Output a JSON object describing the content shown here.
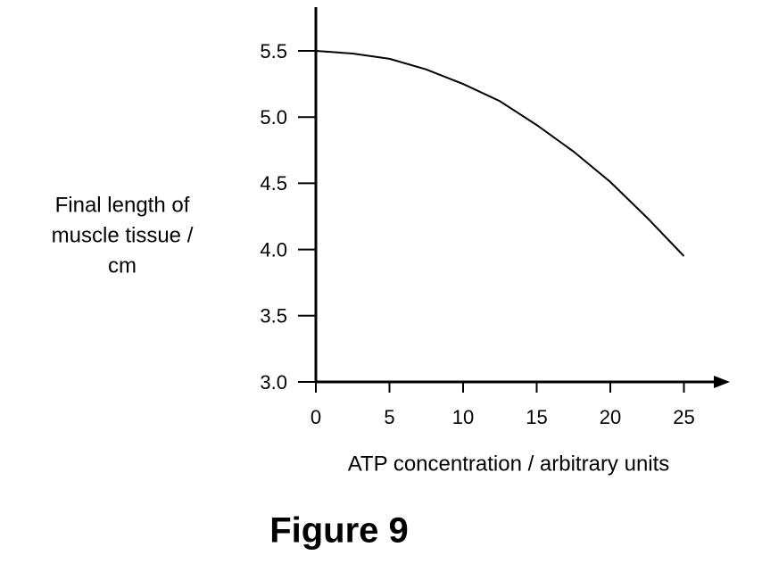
{
  "chart_data": {
    "type": "line",
    "title": "Figure 9",
    "xlabel": "ATP concentration / arbitrary units",
    "ylabel": [
      "Final length of",
      "muscle tissue /",
      "cm"
    ],
    "x": [
      0,
      2.5,
      5,
      7.5,
      10,
      12.5,
      15,
      17.5,
      20,
      22.5,
      25
    ],
    "values": [
      5.5,
      5.48,
      5.44,
      5.36,
      5.25,
      5.12,
      4.94,
      4.74,
      4.51,
      4.24,
      3.95
    ],
    "color": "#000000",
    "xlim": [
      0,
      28
    ],
    "xticks": [
      0,
      5,
      10,
      15,
      20,
      25
    ],
    "ylim": [
      3,
      5.83
    ],
    "yticks": [
      {
        "value": 3,
        "label": "3.0"
      },
      3.5,
      {
        "value": 4,
        "label": "4.0"
      },
      4.5,
      {
        "value": 5,
        "label": "5.0"
      },
      5.5
    ],
    "grid": false
  }
}
